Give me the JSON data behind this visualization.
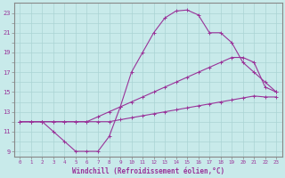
{
  "xlabel": "Windchill (Refroidissement éolien,°C)",
  "bg_color": "#c8eaea",
  "grid_color": "#aad4d4",
  "line_color": "#993399",
  "x_hours": [
    0,
    1,
    2,
    3,
    4,
    5,
    6,
    7,
    8,
    9,
    10,
    11,
    12,
    13,
    14,
    15,
    16,
    17,
    18,
    19,
    20,
    21,
    22,
    23
  ],
  "line1": [
    12.0,
    12.0,
    12.0,
    11.0,
    10.0,
    9.0,
    9.0,
    9.0,
    10.5,
    13.5,
    17.0,
    19.0,
    21.0,
    22.5,
    23.2,
    23.3,
    22.8,
    21.0,
    21.0,
    20.0,
    18.0,
    17.0,
    16.0,
    15.0
  ],
  "line2": [
    12.0,
    12.0,
    12.0,
    12.0,
    12.0,
    12.0,
    12.0,
    12.5,
    13.0,
    13.5,
    14.0,
    14.5,
    15.0,
    15.5,
    16.0,
    16.5,
    17.0,
    17.5,
    18.0,
    18.5,
    18.5,
    18.0,
    15.5,
    15.0
  ],
  "line3": [
    12.0,
    12.0,
    12.0,
    12.0,
    12.0,
    12.0,
    12.0,
    12.0,
    12.0,
    12.2,
    12.4,
    12.6,
    12.8,
    13.0,
    13.2,
    13.4,
    13.6,
    13.8,
    14.0,
    14.2,
    14.4,
    14.6,
    14.5,
    14.5
  ],
  "ylim": [
    8.5,
    24.0
  ],
  "xlim": [
    -0.5,
    23.5
  ],
  "yticks": [
    9,
    11,
    13,
    15,
    17,
    19,
    21,
    23
  ],
  "xticks": [
    0,
    1,
    2,
    3,
    4,
    5,
    6,
    7,
    8,
    9,
    10,
    11,
    12,
    13,
    14,
    15,
    16,
    17,
    18,
    19,
    20,
    21,
    22,
    23
  ]
}
